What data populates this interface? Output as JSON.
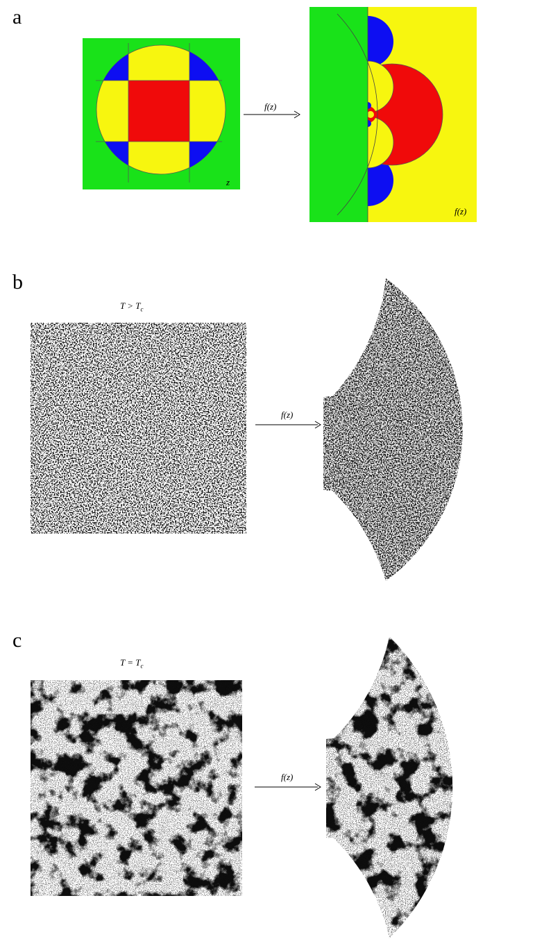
{
  "panels": [
    {
      "label": "a",
      "input_label": "z",
      "arrow_label": "f(z)",
      "output_label": "f(z)",
      "colors": {
        "background_in": "#19e219",
        "disk": "#f7f60f",
        "square": "#f00a0a",
        "corner": "#0d0ef2",
        "background_out": "#f7f60f",
        "halfplane": "#19e219"
      }
    },
    {
      "label": "b",
      "title_left": "T > T",
      "title_sub": "c",
      "arrow_label": "f(z)"
    },
    {
      "label": "c",
      "title_left": "T = T",
      "title_sub": "c",
      "arrow_label": "f(z)"
    }
  ]
}
